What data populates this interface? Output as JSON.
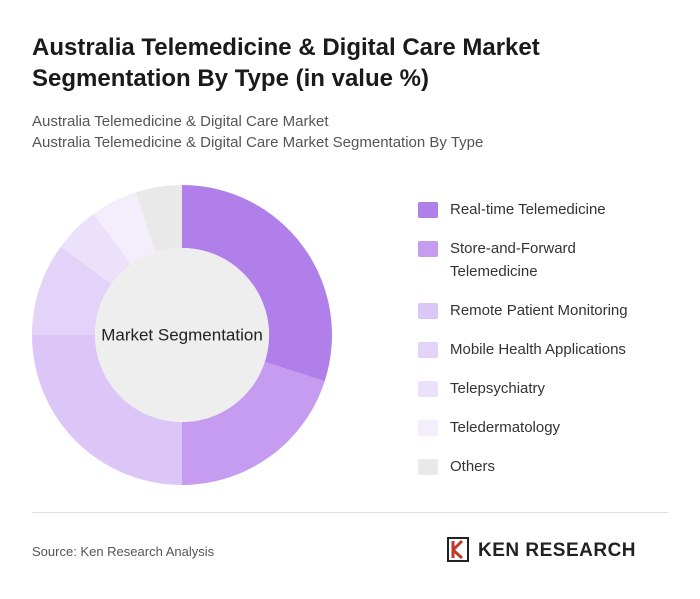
{
  "chart_data": {
    "type": "donut",
    "title": "Australia Telemedicine & Digital Care Market Segmentation By Type (in value %)",
    "subtitle": [
      "Australia Telemedicine & Digital Care Market",
      "Australia Telemedicine & Digital Care Market Segmentation By Type"
    ],
    "center_label": "Market Segmentation",
    "categories": [
      "Real-time Telemedicine",
      "Store-and-Forward Telemedicine",
      "Remote Patient Monitoring",
      "Mobile Health Applications",
      "Telepsychiatry",
      "Teledermatology",
      "Others"
    ],
    "values": [
      30,
      20,
      25,
      10,
      5,
      5,
      5
    ],
    "colors": [
      "#b17fea",
      "#c59cf0",
      "#dcc5f7",
      "#e4d3f8",
      "#ece1fa",
      "#f3edfc",
      "#e9e9e9"
    ],
    "source": "Source: Ken Research Analysis",
    "brand": "KEN RESEARCH"
  }
}
